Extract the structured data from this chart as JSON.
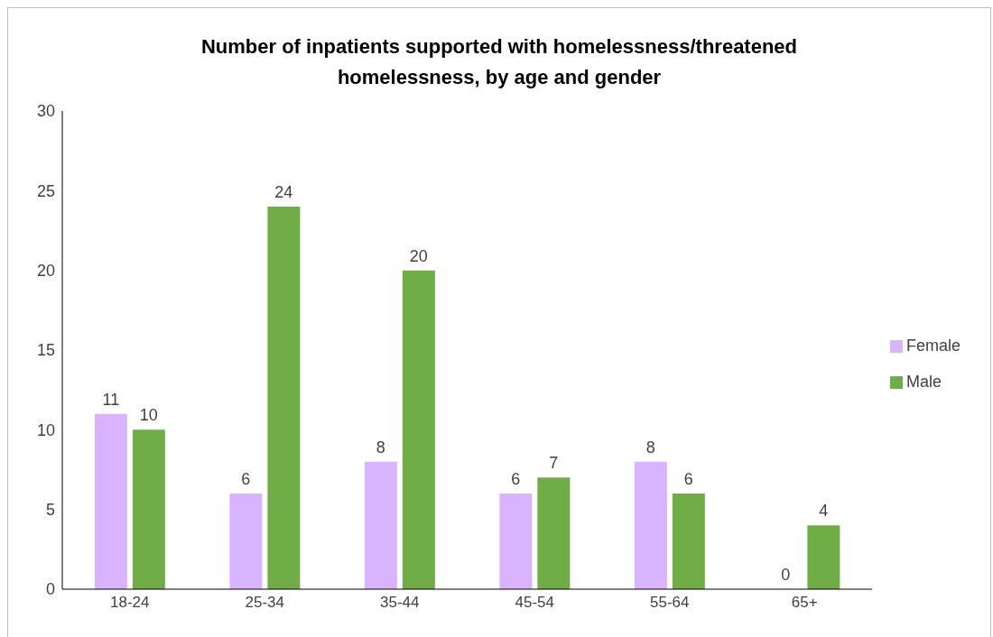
{
  "chart_data": {
    "type": "bar",
    "title": "Number of inpatients supported with homelessness/threatened homelessness, by age and gender",
    "categories": [
      "18-24",
      "25-34",
      "35-44",
      "45-54",
      "55-64",
      "65+"
    ],
    "series": [
      {
        "name": "Female",
        "color": "#d9b3ff",
        "values": [
          11,
          6,
          8,
          6,
          8,
          0
        ]
      },
      {
        "name": "Male",
        "color": "#70ad47",
        "values": [
          10,
          24,
          20,
          7,
          6,
          4
        ]
      }
    ],
    "ylim": [
      0,
      30
    ],
    "yticks": [
      0,
      5,
      10,
      15,
      20,
      25,
      30
    ],
    "grid": false,
    "legend": "right",
    "data_labels": true
  }
}
